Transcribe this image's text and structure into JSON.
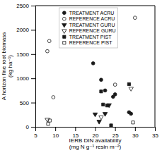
{
  "chart_data": {
    "type": "scatter",
    "title": "",
    "xlabel": "IERB DIN availability\n(mg N g⁻¹ resin m⁻²)",
    "ylabel": "A horizon fine root biomass\n(kg ha⁻¹)",
    "xlim": [
      5,
      35
    ],
    "ylim": [
      0,
      2500
    ],
    "xticks": [
      5,
      10,
      15,
      20,
      25,
      30,
      35
    ],
    "yticks": [
      0,
      500,
      1000,
      1500,
      2000,
      2500
    ],
    "legend": "top",
    "series": [
      {
        "name": "TREATMENT ACRU",
        "marker": "circle",
        "color": "#1a1a1a",
        "x": [
          19.5,
          21.5,
          22.5,
          24.5,
          25.0,
          28.5,
          29.0
        ],
        "values": [
          1310,
          970,
          750,
          620,
          670,
          300,
          270
        ]
      },
      {
        "name": "REFERENCE ACRU",
        "marker": "circle-open",
        "color": "#1a1a1a",
        "x": [
          8.0,
          8.5,
          9.5,
          25.0,
          30.0
        ],
        "values": [
          1560,
          1770,
          610,
          870,
          2250
        ]
      },
      {
        "name": "TREATMENT GURU",
        "marker": "triangle-down",
        "color": "#1a1a1a",
        "x": [
          20.0,
          21.0,
          22.5,
          23.5
        ],
        "values": [
          260,
          110,
          270,
          450
        ]
      },
      {
        "name": "REFERENCE GURU",
        "marker": "triangle-down-open",
        "color": "#1a1a1a",
        "x": [
          8.0,
          21.5,
          29.0
        ],
        "values": [
          150,
          200,
          790
        ]
      },
      {
        "name": "TREATMENT PIST",
        "marker": "square",
        "color": "#1a1a1a",
        "x": [
          21.5,
          22.0,
          23.0,
          24.0,
          28.5
        ],
        "values": [
          730,
          460,
          440,
          30,
          880
        ]
      },
      {
        "name": "REFERENCE PIST",
        "marker": "square-open",
        "color": "#1a1a1a",
        "x": [
          8.2,
          8.6,
          29.5
        ],
        "values": [
          60,
          130,
          90
        ]
      }
    ]
  }
}
